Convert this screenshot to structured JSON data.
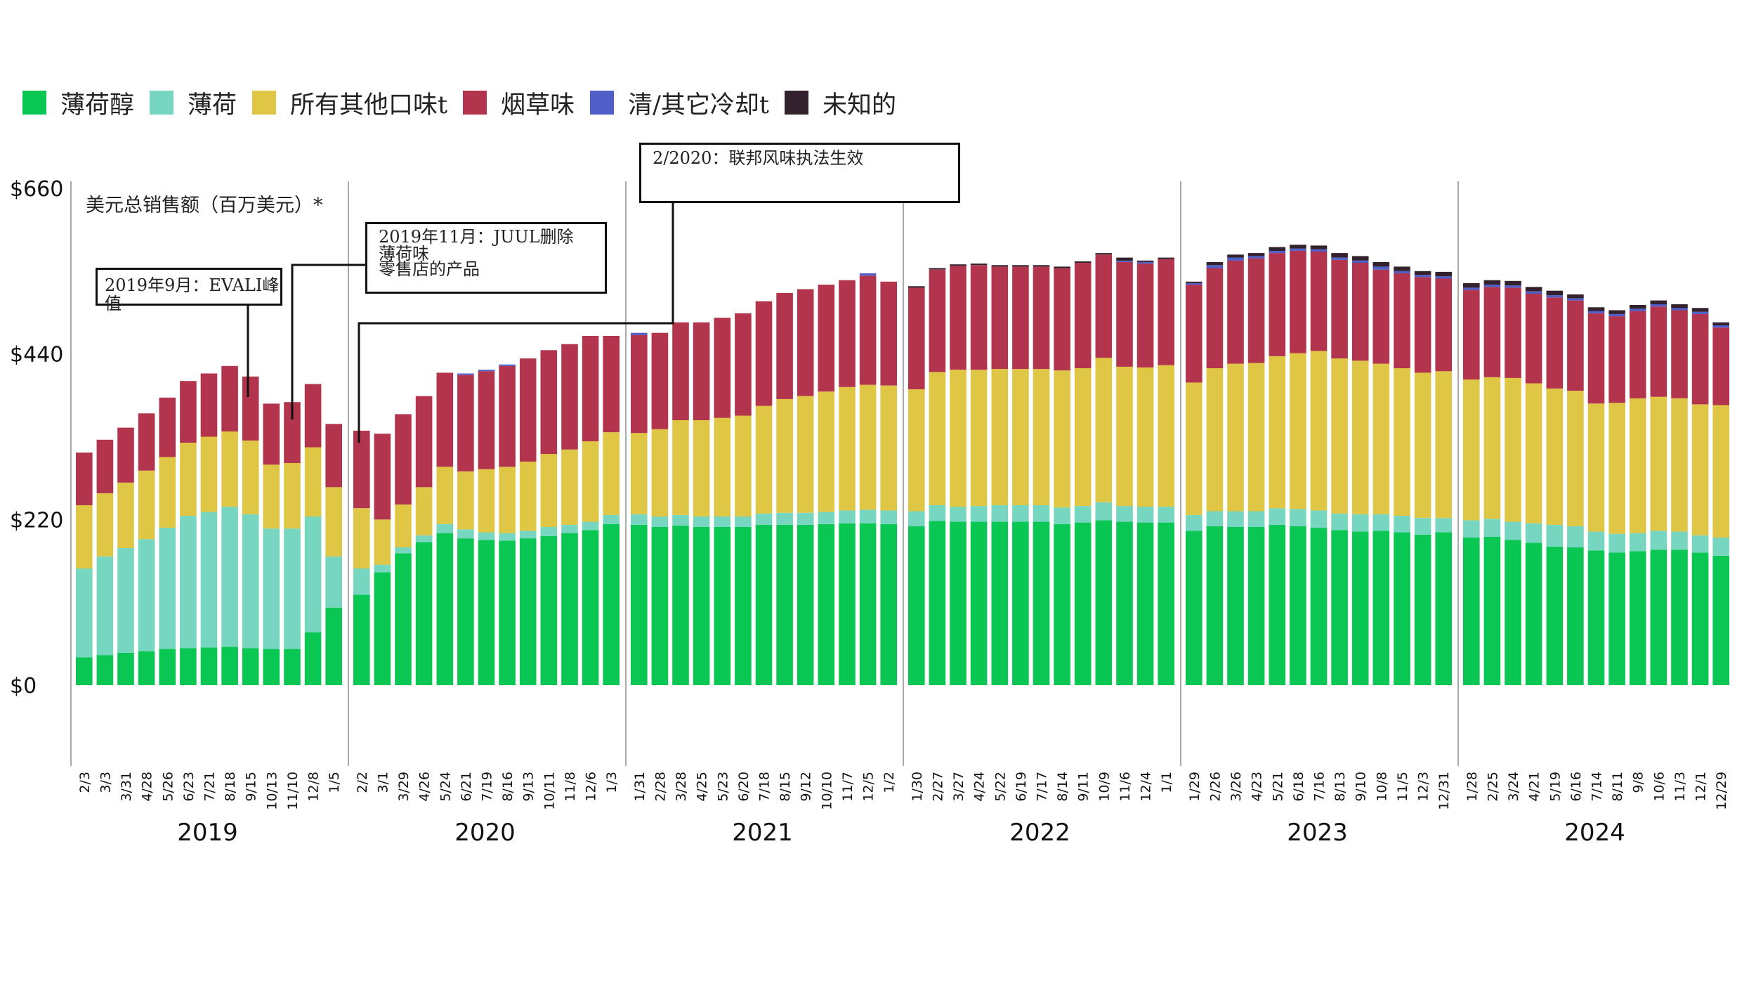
{
  "legend": [
    {
      "label": "薄荷醇",
      "color": "#0ac653"
    },
    {
      "label": "薄荷",
      "color": "#76d6bf"
    },
    {
      "label": "所有其他口味t",
      "color": "#e0c645"
    },
    {
      "label": "烟草味",
      "color": "#b3344d"
    },
    {
      "label": "清/其它冷却t",
      "color": "#4f5ec9"
    },
    {
      "label": "未知的",
      "color": "#33222e"
    }
  ],
  "ylabel": "美元总销售额（百万美元）*",
  "annotations": {
    "evali": "2019年9月：EVALI峰值",
    "juul_line1": "2019年11月：JUUL删除",
    "juul_line2": "薄荷味",
    "juul_line3": "零售店的产品",
    "federal": "2/2020：联邦风味执法生效"
  },
  "chart_data": {
    "type": "bar",
    "stacked": true,
    "ylabel": "美元总销售额（百万美元）*",
    "ylim": [
      0,
      660
    ],
    "yticks": [
      "$0",
      "$220",
      "$440",
      "$660"
    ],
    "series_names": [
      "薄荷醇",
      "薄荷",
      "所有其他口味t",
      "烟草味",
      "清/其它冷却t",
      "未知的"
    ],
    "years": [
      {
        "label": "2019",
        "ticks": [
          "2/3",
          "3/3",
          "3/31",
          "4/28",
          "5/26",
          "6/23",
          "7/21",
          "8/18",
          "9/15",
          "10/13",
          "11/10",
          "12/8",
          "1/5"
        ],
        "bars": [
          [
            37,
            118,
            84,
            70,
            0,
            0
          ],
          [
            40,
            131,
            84,
            71,
            0,
            0
          ],
          [
            43,
            139,
            87,
            73,
            0,
            0
          ],
          [
            45,
            149,
            91,
            76,
            0,
            0
          ],
          [
            48,
            161,
            94,
            79,
            0,
            0
          ],
          [
            49,
            176,
            97,
            82,
            0,
            0
          ],
          [
            50,
            180,
            100,
            84,
            0,
            0
          ],
          [
            51,
            186,
            100,
            87,
            0,
            0
          ],
          [
            49,
            178,
            98,
            85,
            0,
            0
          ],
          [
            48,
            160,
            85,
            81,
            0,
            0
          ],
          [
            48,
            160,
            87,
            81,
            0,
            0
          ],
          [
            70,
            154,
            92,
            84,
            0,
            0
          ],
          [
            103,
            68,
            92,
            84,
            0,
            0
          ]
        ]
      },
      {
        "label": "2020",
        "ticks": [
          "2/2",
          "3/1",
          "3/29",
          "4/26",
          "5/24",
          "6/21",
          "7/19",
          "8/16",
          "9/13",
          "10/11",
          "11/8",
          "12/6",
          "1/3"
        ],
        "bars": [
          [
            120,
            35,
            80,
            103,
            0,
            0
          ],
          [
            150,
            10,
            60,
            114,
            0,
            0
          ],
          [
            175,
            8,
            57,
            120,
            0,
            0
          ],
          [
            190,
            9,
            64,
            121,
            0,
            0
          ],
          [
            202,
            12,
            76,
            125,
            0,
            0
          ],
          [
            195,
            12,
            77,
            128,
            2,
            0
          ],
          [
            193,
            10,
            84,
            130,
            2,
            0
          ],
          [
            192,
            10,
            88,
            134,
            2,
            0
          ],
          [
            195,
            10,
            92,
            137,
            0,
            0
          ],
          [
            198,
            12,
            97,
            138,
            0,
            0
          ],
          [
            202,
            11,
            100,
            140,
            0,
            0
          ],
          [
            206,
            11,
            107,
            140,
            0,
            0
          ],
          [
            214,
            12,
            110,
            128,
            0,
            0
          ]
        ]
      },
      {
        "label": "2021",
        "ticks": [
          "1/31",
          "2/28",
          "3/28",
          "4/25",
          "5/23",
          "6/20",
          "7/18",
          "8/15",
          "9/12",
          "10/10",
          "11/7",
          "12/5",
          "1/2"
        ],
        "bars": [
          [
            213,
            14,
            108,
            130,
            3,
            0
          ],
          [
            210,
            14,
            116,
            128,
            0,
            0
          ],
          [
            212,
            14,
            126,
            130,
            0,
            0
          ],
          [
            210,
            14,
            128,
            130,
            0,
            0
          ],
          [
            210,
            14,
            131,
            133,
            0,
            0
          ],
          [
            210,
            14,
            134,
            136,
            0,
            0
          ],
          [
            213,
            15,
            143,
            139,
            0,
            0
          ],
          [
            213,
            16,
            151,
            141,
            0,
            0
          ],
          [
            213,
            16,
            155,
            142,
            0,
            0
          ],
          [
            214,
            16,
            160,
            142,
            0,
            0
          ],
          [
            215,
            17,
            164,
            142,
            0,
            0
          ],
          [
            215,
            18,
            166,
            145,
            3,
            0
          ],
          [
            214,
            18,
            166,
            138,
            0,
            0
          ]
        ]
      },
      {
        "label": "2022",
        "ticks": [
          "1/30",
          "2/27",
          "3/27",
          "4/24",
          "5/22",
          "6/19",
          "7/17",
          "8/14",
          "9/11",
          "10/9",
          "11/6",
          "12/4",
          "1/1"
        ],
        "bars": [
          [
            211,
            20,
            162,
            135,
            0,
            2
          ],
          [
            218,
            21,
            177,
            136,
            0,
            2
          ],
          [
            217,
            20,
            182,
            138,
            0,
            2
          ],
          [
            217,
            21,
            181,
            139,
            0,
            2
          ],
          [
            217,
            22,
            181,
            136,
            0,
            2
          ],
          [
            217,
            22,
            181,
            136,
            0,
            2
          ],
          [
            217,
            22,
            181,
            136,
            0,
            2
          ],
          [
            214,
            22,
            182,
            136,
            0,
            2
          ],
          [
            216,
            22,
            183,
            140,
            0,
            2
          ],
          [
            219,
            24,
            192,
            137,
            0,
            2
          ],
          [
            217,
            21,
            185,
            139,
            2,
            4
          ],
          [
            216,
            21,
            185,
            138,
            2,
            2
          ],
          [
            216,
            21,
            188,
            141,
            0,
            2
          ]
        ]
      },
      {
        "label": "2023",
        "ticks": [
          "1/29",
          "2/26",
          "3/26",
          "4/23",
          "5/21",
          "6/18",
          "7/16",
          "8/13",
          "9/10",
          "10/8",
          "11/5",
          "12/3",
          "12/31"
        ],
        "bars": [
          [
            205,
            21,
            176,
            130,
            2,
            2
          ],
          [
            211,
            20,
            190,
            133,
            4,
            4
          ],
          [
            210,
            21,
            196,
            137,
            4,
            4
          ],
          [
            210,
            21,
            197,
            139,
            3,
            4
          ],
          [
            213,
            22,
            202,
            137,
            3,
            5
          ],
          [
            211,
            23,
            207,
            136,
            3,
            5
          ],
          [
            209,
            23,
            212,
            132,
            3,
            5
          ],
          [
            206,
            22,
            206,
            131,
            3,
            6
          ],
          [
            204,
            23,
            204,
            130,
            3,
            6
          ],
          [
            205,
            22,
            200,
            125,
            4,
            6
          ],
          [
            203,
            22,
            196,
            126,
            3,
            6
          ],
          [
            200,
            22,
            193,
            127,
            3,
            5
          ],
          [
            203,
            19,
            195,
            123,
            3,
            6
          ]
        ]
      },
      {
        "label": "2024",
        "ticks": [
          "1/28",
          "2/25",
          "3/24",
          "4/21",
          "5/19",
          "6/16",
          "7/14",
          "8/11",
          "9/8",
          "10/6",
          "11/3",
          "12/1",
          "12/29"
        ],
        "bars": [
          [
            196,
            23,
            187,
            119,
            3,
            6
          ],
          [
            197,
            24,
            188,
            120,
            3,
            6
          ],
          [
            193,
            24,
            191,
            120,
            3,
            6
          ],
          [
            189,
            26,
            186,
            119,
            3,
            6
          ],
          [
            184,
            29,
            181,
            121,
            3,
            6
          ],
          [
            183,
            28,
            180,
            120,
            3,
            5
          ],
          [
            179,
            25,
            170,
            120,
            3,
            5
          ],
          [
            176,
            25,
            174,
            115,
            3,
            5
          ],
          [
            178,
            24,
            179,
            116,
            3,
            5
          ],
          [
            180,
            25,
            178,
            120,
            3,
            5
          ],
          [
            180,
            24,
            177,
            117,
            3,
            5
          ],
          [
            176,
            23,
            174,
            120,
            3,
            5
          ],
          [
            172,
            24,
            176,
            103,
            3,
            4
          ]
        ]
      }
    ]
  }
}
